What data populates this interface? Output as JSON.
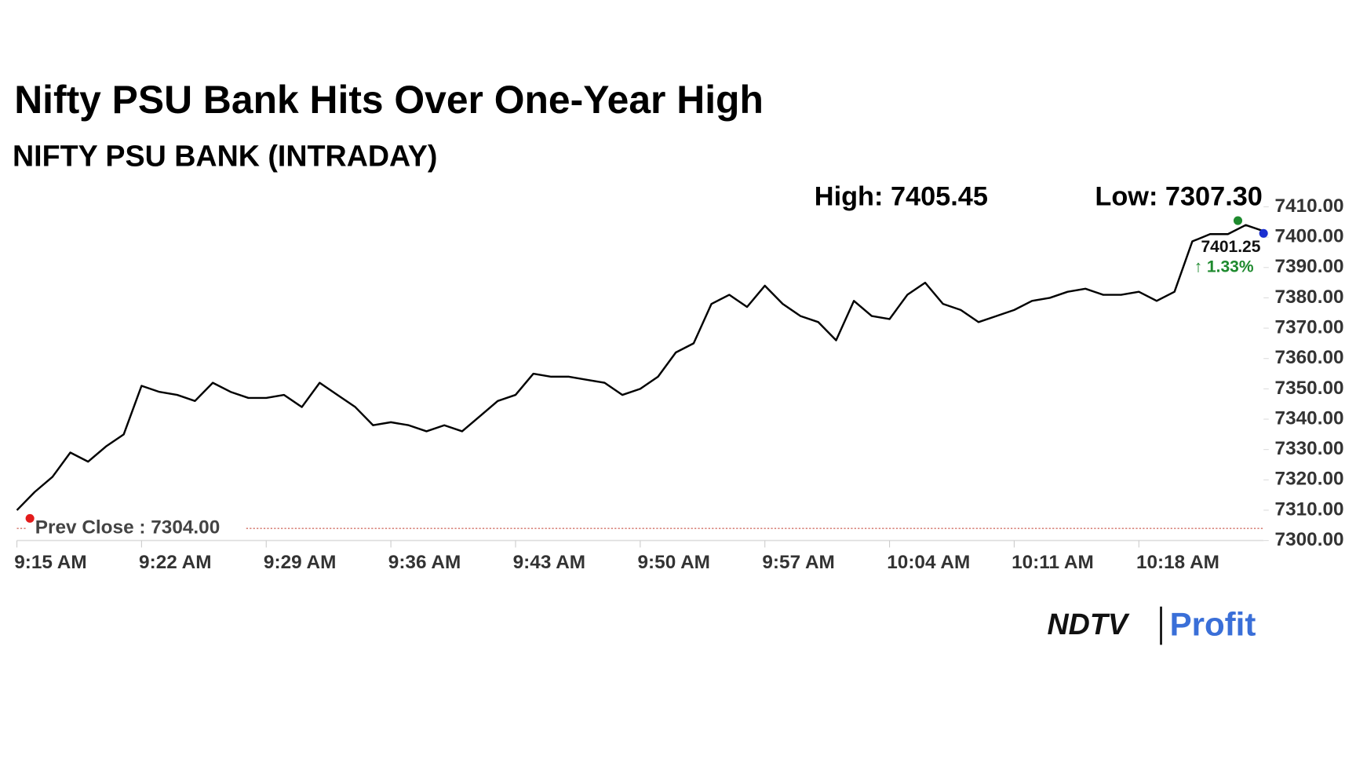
{
  "chart_data": {
    "type": "line",
    "title": "Nifty PSU Bank Hits Over One-Year High",
    "subtitle": "NIFTY PSU BANK (INTRADAY)",
    "high": {
      "label": "High: 7405.45",
      "value": 7405.45
    },
    "low": {
      "label": "Low: 7307.30",
      "value": 7307.3
    },
    "last": {
      "value": 7401.25,
      "label": "7401.25",
      "change": "↑ 1.33%"
    },
    "prev_close": {
      "value": 7304,
      "label": "Prev Close : 7304.00"
    },
    "categories": [
      "9:15 AM",
      null,
      null,
      null,
      null,
      null,
      null,
      "9:22 AM",
      null,
      null,
      null,
      null,
      null,
      null,
      "9:29 AM",
      null,
      null,
      null,
      null,
      null,
      null,
      "9:36 AM",
      null,
      null,
      null,
      null,
      null,
      null,
      "9:43 AM",
      null,
      null,
      null,
      null,
      null,
      null,
      "9:50 AM",
      null,
      null,
      null,
      null,
      null,
      null,
      "9:57 AM",
      null,
      null,
      null,
      null,
      null,
      null,
      "10:04 AM",
      null,
      null,
      null,
      null,
      null,
      null,
      "10:11 AM",
      null,
      null,
      null,
      null,
      null,
      null,
      "10:18 AM",
      null,
      null,
      null,
      null,
      null,
      null,
      null
    ],
    "series": [
      {
        "name": "NIFTY PSU BANK",
        "color": "#000000",
        "values": [
          7310,
          7316,
          7321,
          7329,
          7326,
          7331,
          7335,
          7351,
          7349,
          7348,
          7346,
          7352,
          7349,
          7347,
          7347,
          7348,
          7344,
          7352,
          7348,
          7344,
          7338,
          7339,
          7338,
          7336,
          7338,
          7336,
          7341,
          7346,
          7348,
          7355,
          7354,
          7354,
          7353,
          7352,
          7348,
          7350,
          7354,
          7362,
          7365,
          7378,
          7381,
          7377,
          7384,
          7378,
          7374,
          7372,
          7366,
          7379,
          7374,
          7373,
          7381,
          7385,
          7378,
          7376,
          7372,
          7374,
          7376,
          7379,
          7380,
          7382,
          7383,
          7381,
          7381,
          7382,
          7379,
          7382,
          7398.6,
          7401,
          7401,
          7404,
          7402
        ]
      }
    ],
    "ylim": [
      7300,
      7410
    ],
    "yticks": [
      {
        "value": 7300,
        "label": "7300.00"
      },
      {
        "value": 7310,
        "label": "7310.00"
      },
      {
        "value": 7320,
        "label": "7320.00"
      },
      {
        "value": 7330,
        "label": "7330.00"
      },
      {
        "value": 7340,
        "label": "7340.00"
      },
      {
        "value": 7350,
        "label": "7350.00"
      },
      {
        "value": 7360,
        "label": "7360.00"
      },
      {
        "value": 7370,
        "label": "7370.00"
      },
      {
        "value": 7380,
        "label": "7380.00"
      },
      {
        "value": 7390,
        "label": "7390.00"
      },
      {
        "value": 7400,
        "label": "7400.00"
      },
      {
        "value": 7410,
        "label": "7410.00"
      }
    ],
    "grid": false
  },
  "brand": {
    "name": "NDTV",
    "product": "Profit"
  }
}
